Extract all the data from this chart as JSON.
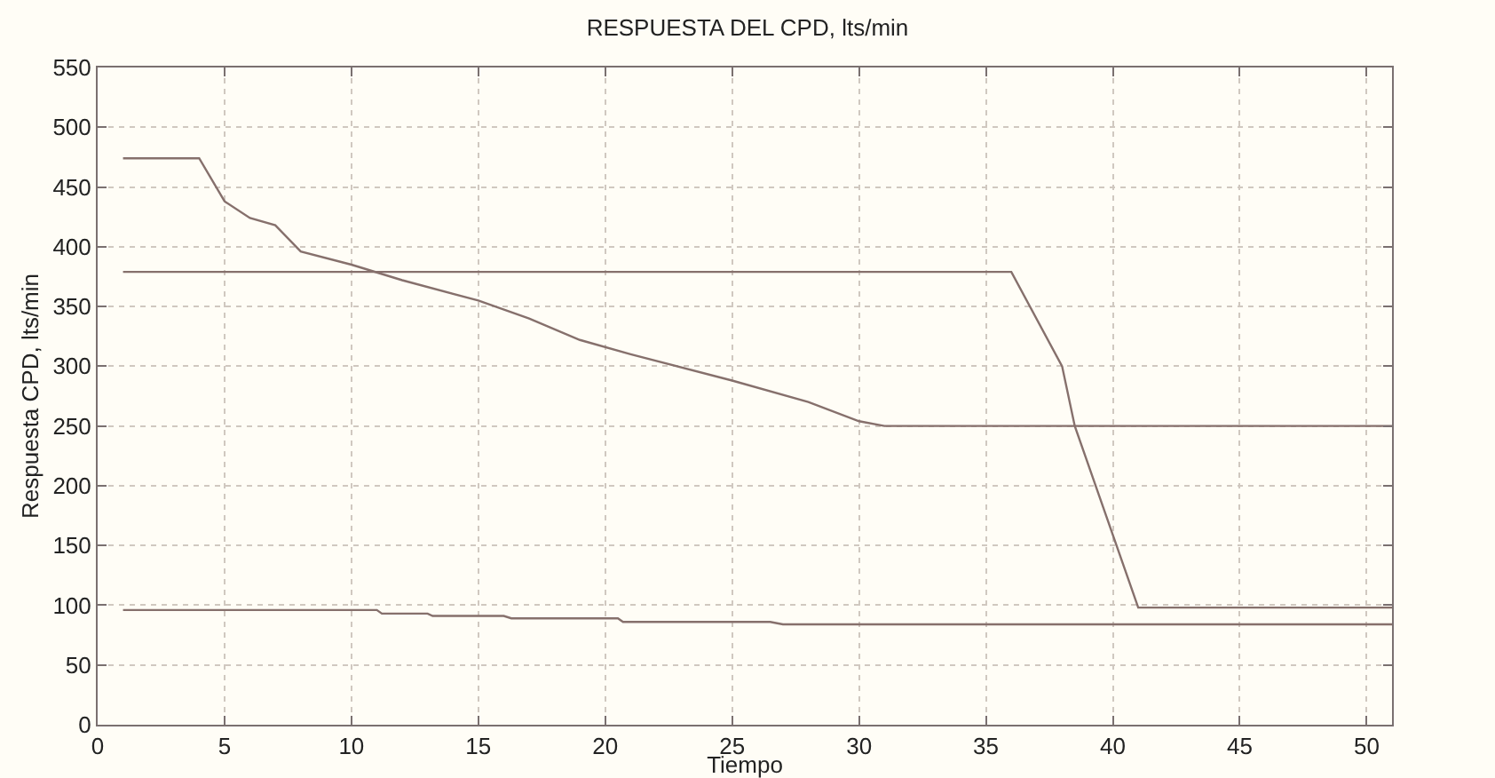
{
  "chart_data": {
    "type": "line",
    "title": "RESPUESTA DEL CPD, lts/min",
    "xlabel": "Tiempo",
    "ylabel": "Respuesta CPD, lts/min",
    "xlim": [
      0,
      51
    ],
    "xticks": [
      0,
      5,
      10,
      15,
      20,
      25,
      30,
      35,
      40,
      45,
      50
    ],
    "ylim": [
      0,
      550
    ],
    "yticks": [
      0,
      50,
      100,
      150,
      200,
      250,
      300,
      350,
      400,
      450,
      500,
      550
    ],
    "grid": true,
    "marker": "none",
    "line_style": "solid",
    "series": [
      {
        "color": "#86706c",
        "x": [
          1,
          4,
          5,
          6,
          7,
          8,
          10,
          12,
          15,
          17,
          19,
          21,
          25,
          28,
          30,
          31,
          51
        ],
        "values": [
          474,
          474,
          438,
          424,
          418,
          396,
          385,
          372,
          355,
          340,
          322,
          310,
          288,
          270,
          254,
          250,
          250
        ]
      },
      {
        "color": "#86706c",
        "x": [
          1,
          36,
          38,
          38.5,
          41,
          51
        ],
        "values": [
          379,
          379,
          300,
          250,
          98,
          98
        ]
      },
      {
        "color": "#86706c",
        "x": [
          1,
          11,
          11.2,
          13,
          13.2,
          16,
          16.3,
          20.5,
          20.7,
          26.5,
          27,
          51
        ],
        "values": [
          96,
          96,
          93,
          93,
          91,
          91,
          89,
          89,
          86,
          86,
          84,
          84
        ]
      }
    ]
  }
}
